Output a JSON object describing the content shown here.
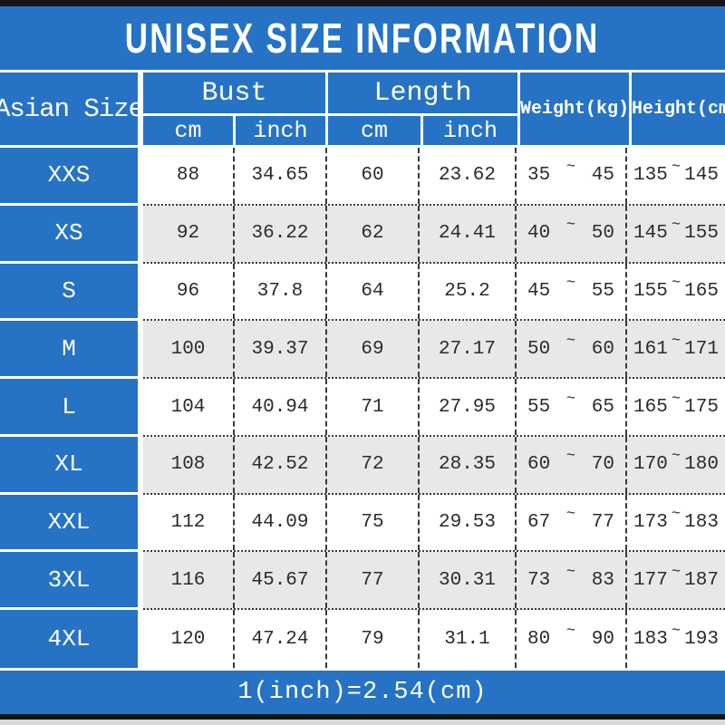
{
  "title": "UNISEX SIZE INFORMATION",
  "header": {
    "size_column": "Asian Size",
    "groups": [
      {
        "label": "Bust",
        "subs": [
          "cm",
          "inch"
        ]
      },
      {
        "label": "Length",
        "subs": [
          "cm",
          "inch"
        ]
      }
    ],
    "weight_label": "Weight(kg)",
    "height_label": "Height(cm)"
  },
  "tilde": "~",
  "chart_data": {
    "type": "table",
    "title": "UNISEX SIZE INFORMATION",
    "columns": [
      "Asian Size",
      "Bust cm",
      "Bust inch",
      "Length cm",
      "Length inch",
      "Weight(kg)",
      "Height(cm)"
    ],
    "rows": [
      [
        "XXS",
        "88",
        "34.65",
        "60",
        "23.62",
        "35~45",
        "135~145"
      ],
      [
        "XS",
        "92",
        "36.22",
        "62",
        "24.41",
        "40~50",
        "145~155"
      ],
      [
        "S",
        "96",
        "37.8",
        "64",
        "25.2",
        "45~55",
        "155~165"
      ],
      [
        "M",
        "100",
        "39.37",
        "69",
        "27.17",
        "50~60",
        "161~171"
      ],
      [
        "L",
        "104",
        "40.94",
        "71",
        "27.95",
        "55~65",
        "165~175"
      ],
      [
        "XL",
        "108",
        "42.52",
        "72",
        "28.35",
        "60~70",
        "170~180"
      ],
      [
        "XXL",
        "112",
        "44.09",
        "75",
        "29.53",
        "67~77",
        "173~183"
      ],
      [
        "3XL",
        "116",
        "45.67",
        "77",
        "30.31",
        "73~83",
        "177~187"
      ],
      [
        "4XL",
        "120",
        "47.24",
        "79",
        "31.1",
        "80~90",
        "183~193"
      ]
    ]
  },
  "rows": [
    {
      "size": "XXS",
      "bust_cm": "88",
      "bust_inch": "34.65",
      "length_cm": "60",
      "length_inch": "23.62",
      "weight_min": "35",
      "weight_max": "45",
      "height_min": "135",
      "height_max": "145"
    },
    {
      "size": "XS",
      "bust_cm": "92",
      "bust_inch": "36.22",
      "length_cm": "62",
      "length_inch": "24.41",
      "weight_min": "40",
      "weight_max": "50",
      "height_min": "145",
      "height_max": "155"
    },
    {
      "size": "S",
      "bust_cm": "96",
      "bust_inch": "37.8",
      "length_cm": "64",
      "length_inch": "25.2",
      "weight_min": "45",
      "weight_max": "55",
      "height_min": "155",
      "height_max": "165"
    },
    {
      "size": "M",
      "bust_cm": "100",
      "bust_inch": "39.37",
      "length_cm": "69",
      "length_inch": "27.17",
      "weight_min": "50",
      "weight_max": "60",
      "height_min": "161",
      "height_max": "171"
    },
    {
      "size": "L",
      "bust_cm": "104",
      "bust_inch": "40.94",
      "length_cm": "71",
      "length_inch": "27.95",
      "weight_min": "55",
      "weight_max": "65",
      "height_min": "165",
      "height_max": "175"
    },
    {
      "size": "XL",
      "bust_cm": "108",
      "bust_inch": "42.52",
      "length_cm": "72",
      "length_inch": "28.35",
      "weight_min": "60",
      "weight_max": "70",
      "height_min": "170",
      "height_max": "180"
    },
    {
      "size": "XXL",
      "bust_cm": "112",
      "bust_inch": "44.09",
      "length_cm": "75",
      "length_inch": "29.53",
      "weight_min": "67",
      "weight_max": "77",
      "height_min": "173",
      "height_max": "183"
    },
    {
      "size": "3XL",
      "bust_cm": "116",
      "bust_inch": "45.67",
      "length_cm": "77",
      "length_inch": "30.31",
      "weight_min": "73",
      "weight_max": "83",
      "height_min": "177",
      "height_max": "187"
    },
    {
      "size": "4XL",
      "bust_cm": "120",
      "bust_inch": "47.24",
      "length_cm": "79",
      "length_inch": "31.1",
      "weight_min": "80",
      "weight_max": "90",
      "height_min": "183",
      "height_max": "193"
    }
  ],
  "footer": "1(inch)=2.54(cm)",
  "colors": {
    "blue": "#2673c5",
    "rowAlt": "#e9e8e6",
    "bar": "#151515",
    "strip": "#d9d9d9"
  }
}
